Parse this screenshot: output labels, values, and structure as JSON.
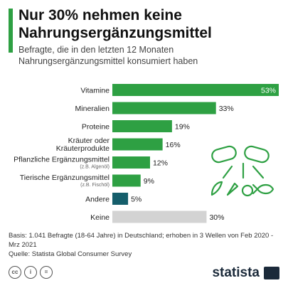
{
  "header": {
    "title": "Nur 30% nehmen keine Nahrungsergänzungsmittel",
    "subtitle": "Befragte, die in den letzten 12 Monaten Nahrungsergänzungsmittel konsumiert haben"
  },
  "chart_data": {
    "type": "bar",
    "orientation": "horizontal",
    "categories": [
      {
        "label": "Vitamine",
        "sub": ""
      },
      {
        "label": "Mineralien",
        "sub": ""
      },
      {
        "label": "Proteine",
        "sub": ""
      },
      {
        "label": "Kräuter oder Kräuterprodukte",
        "lines": [
          "Kräuter oder",
          "Kräuterprodukte"
        ],
        "sub": ""
      },
      {
        "label": "Pflanzliche Ergänzungsmittel",
        "sub": "(z.B. Algenöl)"
      },
      {
        "label": "Tierische Ergänzungsmittel",
        "sub": "(z.B. Fischöl)"
      },
      {
        "label": "Andere",
        "sub": ""
      },
      {
        "label": "Keine",
        "sub": ""
      }
    ],
    "values": [
      53,
      33,
      19,
      16,
      12,
      9,
      5,
      30
    ],
    "value_labels": [
      "53%",
      "33%",
      "19%",
      "16%",
      "12%",
      "9%",
      "5%",
      "30%"
    ],
    "colors": [
      "#2ea043",
      "#2ea043",
      "#2ea043",
      "#2ea043",
      "#2ea043",
      "#2ea043",
      "#155e6b",
      "#d3d3d3"
    ],
    "xlim": [
      0,
      53
    ],
    "grid": false,
    "legend": "none"
  },
  "footer": {
    "basis": "Basis: 1.041 Befragte (18-64 Jahre) in Deutschland; erhoben in 3 Wellen von Feb 2020 - Mrz 2021",
    "source": "Quelle: Statista Global Consumer Survey",
    "brand": "statista",
    "license_icons": [
      "cc-icon",
      "attribution-icon",
      "noderivs-icon"
    ]
  },
  "colors": {
    "accent": "#2ea043",
    "other": "#155e6b",
    "none": "#d3d3d3",
    "brand": "#1b2a3a"
  }
}
